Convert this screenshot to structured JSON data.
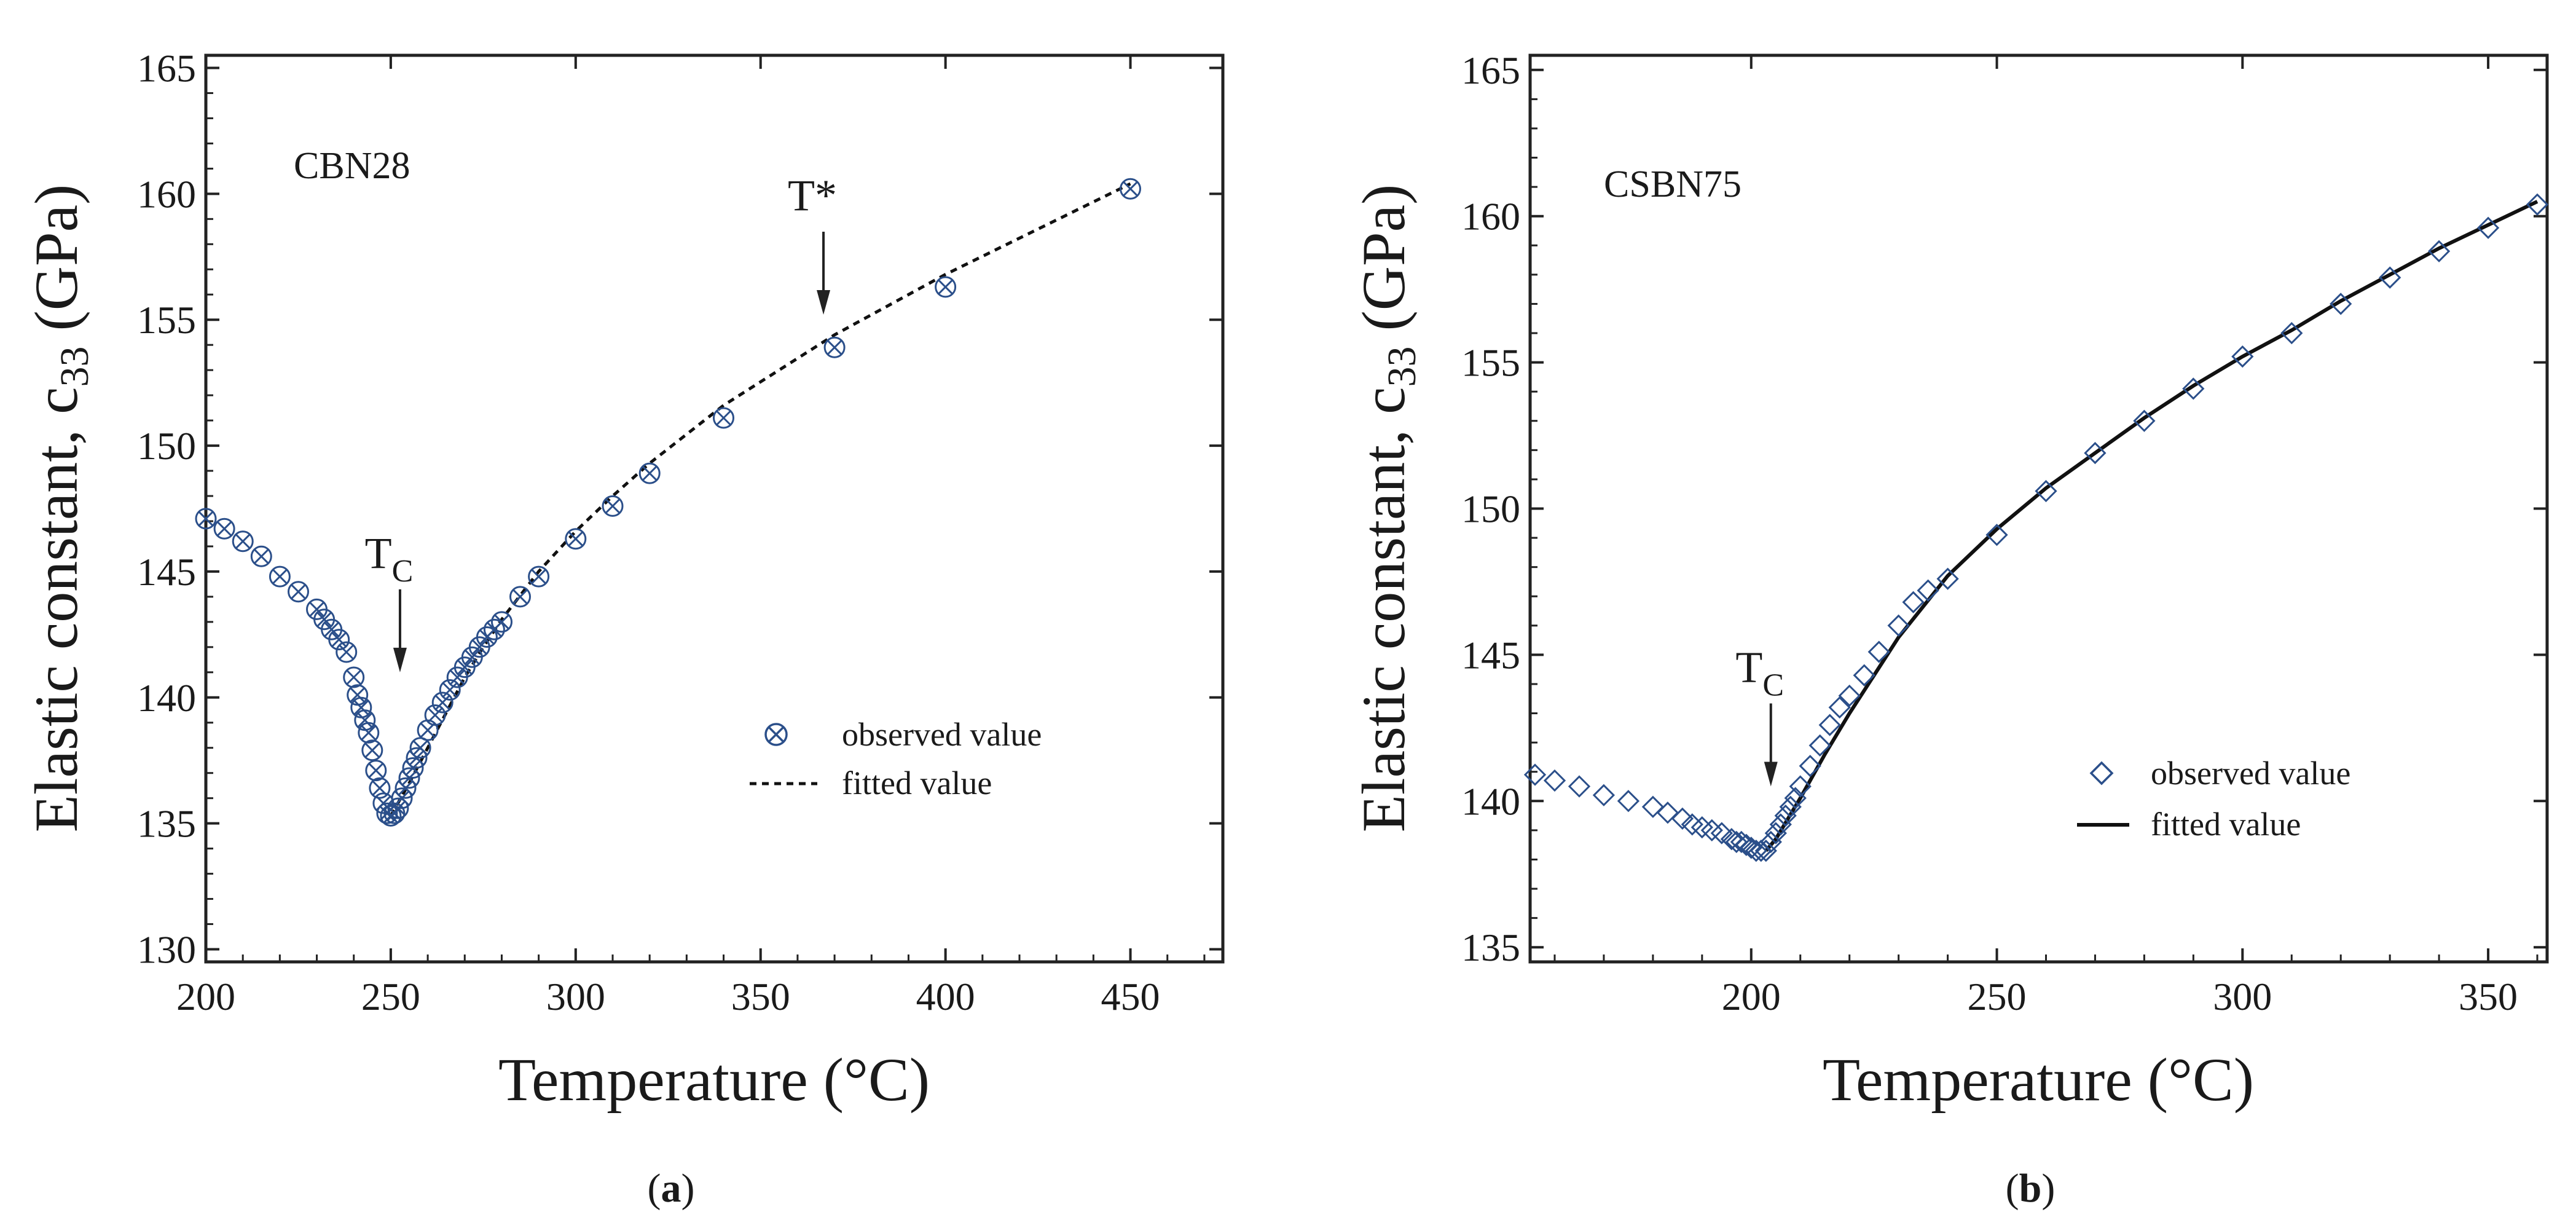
{
  "colors": {
    "marker": "#2b4f8a",
    "line": "#111111",
    "axis": "#222222",
    "text": "#1a1a1a"
  },
  "chart_data": [
    {
      "id": "a",
      "type": "scatter",
      "caption": "a",
      "panel_label": "CBN28",
      "xlabel": "Temperature (°C)",
      "ylabel": "Elastic constant, c",
      "ylabel_subscript": "33",
      "ylabel_unit": " (GPa)",
      "xlim": [
        200,
        475
      ],
      "ylim": [
        129.5,
        165.5
      ],
      "xticks": [
        200,
        250,
        300,
        350,
        400,
        450
      ],
      "yticks": [
        130,
        135,
        140,
        145,
        150,
        155,
        160,
        165
      ],
      "marker": "circle-x",
      "line_style": "dashed",
      "legend": {
        "position": "lower-right",
        "observed": "observed value",
        "fitted": "fitted value"
      },
      "annotations": [
        {
          "id": "tc",
          "text": "T",
          "subscript": "C",
          "x": 252.5,
          "y": 141.0
        },
        {
          "id": "tstar",
          "text": "T*",
          "subscript": "",
          "x": 367.0,
          "y": 155.2
        }
      ],
      "series": [
        {
          "name": "observed value",
          "x": [
            200,
            205,
            210,
            215,
            220,
            225,
            230,
            232,
            234,
            236,
            238,
            240,
            241,
            242,
            243,
            244,
            245,
            246,
            247,
            248,
            249,
            250,
            251,
            252,
            253,
            254,
            255,
            256,
            257,
            258,
            260,
            262,
            264,
            266,
            268,
            270,
            272,
            274,
            276,
            278,
            280,
            285,
            290,
            300,
            310,
            320,
            340,
            370,
            400,
            450
          ],
          "y": [
            147.1,
            146.7,
            146.2,
            145.6,
            144.8,
            144.2,
            143.5,
            143.1,
            142.7,
            142.3,
            141.8,
            140.8,
            140.1,
            139.6,
            139.1,
            138.6,
            137.9,
            137.1,
            136.4,
            135.8,
            135.4,
            135.3,
            135.4,
            135.6,
            136.0,
            136.4,
            136.8,
            137.2,
            137.6,
            138.0,
            138.7,
            139.3,
            139.8,
            140.3,
            140.8,
            141.2,
            141.6,
            142.0,
            142.4,
            142.7,
            143.0,
            144.0,
            144.8,
            146.3,
            147.6,
            148.9,
            151.1,
            153.9,
            156.3,
            160.2
          ]
        },
        {
          "name": "fitted value",
          "x": [
            250,
            255,
            260,
            265,
            270,
            275,
            280,
            290,
            300,
            310,
            320,
            340,
            370,
            400,
            450
          ],
          "y": [
            135.3,
            136.6,
            138.0,
            139.4,
            140.8,
            142.0,
            143.1,
            145.0,
            146.6,
            148.0,
            149.3,
            151.6,
            154.4,
            156.8,
            160.4
          ]
        }
      ]
    },
    {
      "id": "b",
      "type": "scatter",
      "caption": "b",
      "panel_label": "CSBN75",
      "xlabel": "Temperature (°C)",
      "ylabel": "Elastic constant, c",
      "ylabel_subscript": "33",
      "ylabel_unit": " (GPa)",
      "xlim": [
        155,
        362
      ],
      "ylim": [
        134.5,
        165.5
      ],
      "xticks": [
        200,
        250,
        300,
        350
      ],
      "yticks": [
        135,
        140,
        145,
        150,
        155,
        160,
        165
      ],
      "marker": "diamond",
      "line_style": "solid",
      "legend": {
        "position": "lower-right",
        "observed": "observed value",
        "fitted": "fitted value"
      },
      "annotations": [
        {
          "id": "tc",
          "text": "T",
          "subscript": "C",
          "x": 204.0,
          "y": 140.5
        }
      ],
      "series": [
        {
          "name": "observed value",
          "x": [
            156,
            160,
            165,
            170,
            175,
            180,
            183,
            186,
            188,
            190,
            192,
            194,
            196,
            197,
            198,
            199,
            200,
            201,
            202,
            203,
            204,
            205,
            206,
            207,
            208,
            209,
            210,
            212,
            214,
            216,
            218,
            220,
            223,
            226,
            230,
            233,
            236,
            240,
            250,
            260,
            270,
            280,
            290,
            300,
            310,
            320,
            330,
            340,
            350,
            360
          ],
          "y": [
            140.9,
            140.7,
            140.5,
            140.2,
            140.0,
            139.8,
            139.6,
            139.4,
            139.2,
            139.1,
            139.0,
            138.9,
            138.7,
            138.6,
            138.6,
            138.5,
            138.4,
            138.3,
            138.3,
            138.3,
            138.6,
            138.9,
            139.2,
            139.5,
            139.8,
            140.1,
            140.5,
            141.2,
            141.9,
            142.6,
            143.2,
            143.6,
            144.3,
            145.1,
            146.0,
            146.8,
            147.2,
            147.6,
            149.1,
            150.6,
            151.9,
            153.0,
            154.1,
            155.2,
            156.0,
            157.0,
            157.9,
            158.8,
            159.6,
            160.4
          ]
        },
        {
          "name": "fitted value",
          "x": [
            203,
            205,
            210,
            215,
            220,
            225,
            230,
            240,
            250,
            260,
            270,
            280,
            290,
            300,
            310,
            320,
            330,
            340,
            350,
            360
          ],
          "y": [
            138.3,
            138.7,
            140.1,
            141.6,
            143.0,
            144.3,
            145.6,
            147.7,
            149.3,
            150.7,
            151.9,
            153.1,
            154.2,
            155.2,
            156.1,
            157.1,
            158.0,
            158.9,
            159.7,
            160.5
          ]
        }
      ]
    }
  ]
}
